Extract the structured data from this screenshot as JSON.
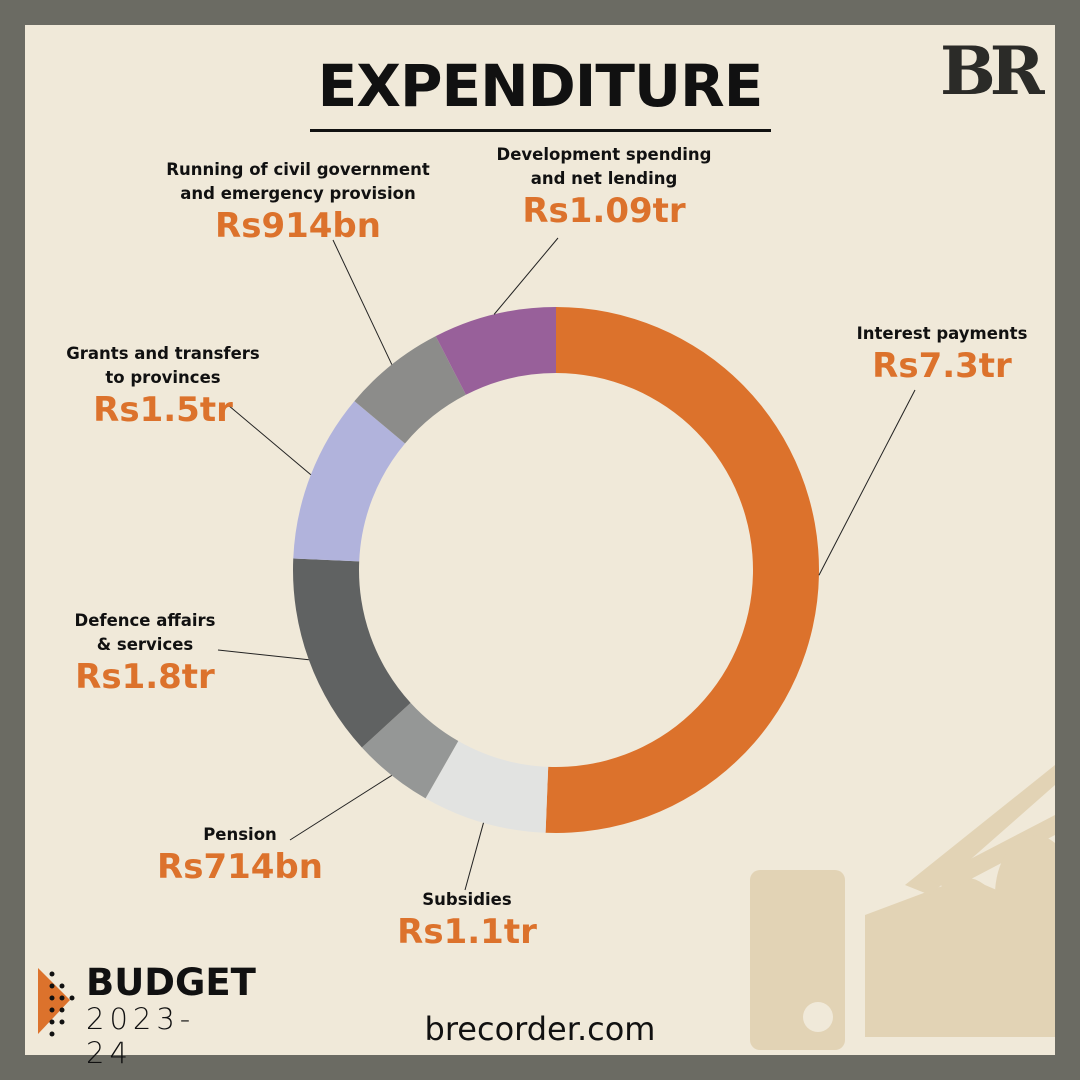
{
  "header": {
    "title": "EXPENDITURE",
    "logo": "BR"
  },
  "footer": {
    "budget_word": "BUDGET",
    "budget_year": "2023-24",
    "site": "brecorder.com"
  },
  "colors": {
    "background": "#f0e9d9",
    "frame": "#6b6b63",
    "accent": "#dc722c"
  },
  "chart_data": {
    "type": "pie",
    "donut": true,
    "start": "top, clockwise",
    "unit": "Rs trillion",
    "slices": [
      {
        "name": "Interest payments",
        "label": "Rs7.3tr",
        "value": 7.3,
        "color": "#dc722c"
      },
      {
        "name": "Subsidies",
        "label": "Rs1.1tr",
        "value": 1.1,
        "color": "#e2e3e1"
      },
      {
        "name": "Pension",
        "label": "Rs714bn",
        "value": 0.714,
        "color": "#959796"
      },
      {
        "name": "Defence affairs\n& services",
        "label": "Rs1.8tr",
        "value": 1.8,
        "color": "#606262"
      },
      {
        "name": "Grants and transfers\nto provinces",
        "label": "Rs1.5tr",
        "value": 1.5,
        "color": "#b1b3dc"
      },
      {
        "name": "Running of civil government\nand emergency provision",
        "label": "Rs914bn",
        "value": 0.914,
        "color": "#8c8c8a"
      },
      {
        "name": "Development spending\nand net lending",
        "label": "Rs1.09tr",
        "value": 1.09,
        "color": "#98609a"
      }
    ]
  }
}
